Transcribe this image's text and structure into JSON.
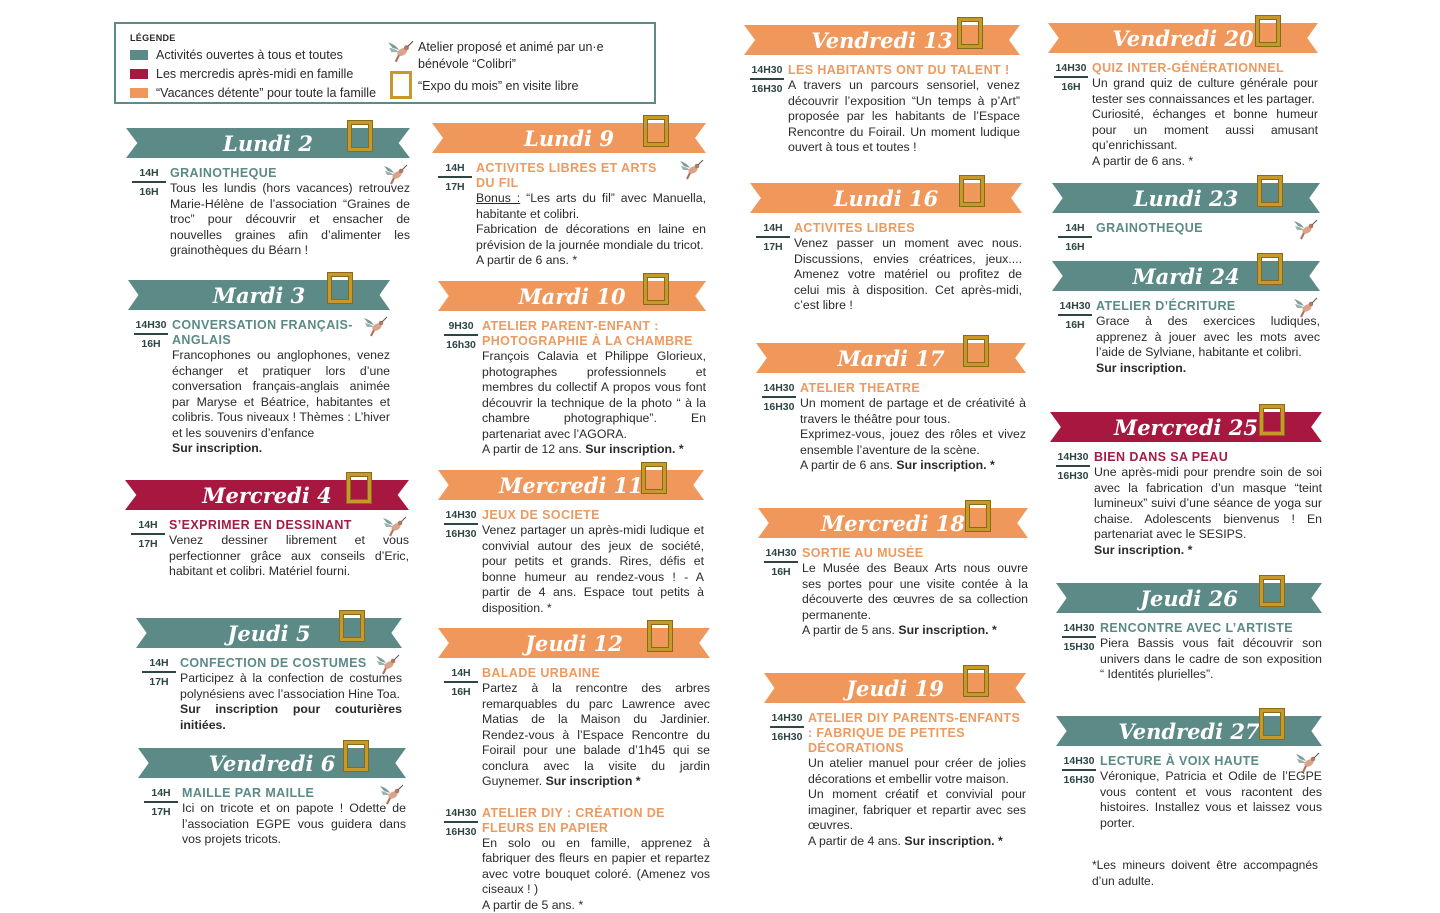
{
  "colors": {
    "teal": "#5b8a87",
    "crimson": "#a8173f",
    "orange": "#f0985c",
    "teal_text": "#5b8a87",
    "crimson_text": "#a31c45",
    "orange_text": "#ec9a60"
  },
  "legend": {
    "title": "LÉGENDE",
    "items": [
      {
        "color": "teal",
        "label": "Activités ouvertes à tous et toutes"
      },
      {
        "color": "crimson",
        "label": "Les mercredis après-midi en famille"
      },
      {
        "color": "orange",
        "label": "“Vacances détente” pour toute la famille"
      }
    ],
    "icons": [
      {
        "icon": "hummingbird-icon",
        "label": "Atelier proposé et animé par un·e bénévole “Colibri”"
      },
      {
        "icon": "picture-frame-icon",
        "label": "“Expo du mois” en visite libre"
      }
    ]
  },
  "days": [
    {
      "label": "Lundi 2",
      "color": "teal",
      "events": [
        {
          "start": "14H",
          "end": "16H",
          "title": "Grainotheque",
          "bird": true,
          "body": [
            [
              {
                "t": "Tous les lundis (hors vacances) retrouvez Marie-Hélène de l’association “Graines de troc” pour découvrir et ensacher de nouvelles graines afin d’alimenter les grainothèques du Béarn !"
              }
            ]
          ]
        }
      ]
    },
    {
      "label": "Mardi 3",
      "color": "teal",
      "events": [
        {
          "start": "14H30",
          "end": "16H",
          "title": "Conversation français-anglais",
          "bird": true,
          "body": [
            [
              {
                "t": "Francophones ou anglophones, venez échanger et pratiquer lors d’une conversation français-anglais animée par Maryse et Béatrice, habitantes et colibris. Tous niveaux ! Thèmes : L’hiver et les souvenirs d’enfance"
              }
            ],
            [
              {
                "t": "Sur inscription.",
                "b": true
              }
            ]
          ]
        }
      ]
    },
    {
      "label": "Mercredi 4",
      "color": "crimson",
      "events": [
        {
          "start": "14H",
          "end": "17H",
          "title": "S’exprimer en dessinant",
          "bird": true,
          "body": [
            [
              {
                "t": "Venez dessiner librement et vous perfectionner grâce aux conseils d’Eric, habitant et colibri. Matériel fourni."
              }
            ]
          ]
        }
      ]
    },
    {
      "label": "Jeudi 5",
      "color": "teal",
      "events": [
        {
          "start": "14H",
          "end": "17H",
          "title": "Confection de costumes",
          "bird": true,
          "body": [
            [
              {
                "t": "Participez à la confection de costumes polynésiens avec l’association Hine Toa."
              }
            ],
            [
              {
                "t": "Sur inscription pour couturières initiées.",
                "b": true
              }
            ]
          ]
        }
      ]
    },
    {
      "label": "Vendredi 6",
      "color": "teal",
      "events": [
        {
          "start": "14H",
          "end": "17H",
          "title": "Maille par maille",
          "bird": true,
          "body": [
            [
              {
                "t": "Ici on tricote et on papote ! Odette de l’association EGPE vous guidera dans vos projets tricots."
              }
            ]
          ]
        }
      ]
    },
    {
      "label": "Lundi 9",
      "color": "orange",
      "events": [
        {
          "start": "14H",
          "end": "17H",
          "title": "Activites libres et arts du fil",
          "bird": true,
          "body": [
            [
              {
                "t": "Bonus :",
                "u": true
              },
              {
                "t": " “Les arts du fil” avec Manuella, habitante et colibri."
              }
            ],
            [
              {
                "t": "Fabrication de décorations en laine en prévision de la journée mondiale du tricot."
              }
            ],
            [
              {
                "t": "A partir de 6 ans. *"
              }
            ]
          ]
        }
      ]
    },
    {
      "label": "Mardi 10",
      "color": "orange",
      "events": [
        {
          "start": "9H30",
          "end": "16h30",
          "title": "Atelier parent-enfant : photographie à la chambre",
          "bird": false,
          "body": [
            [
              {
                "t": "François Calavia et Philippe Glorieux, photographes professionnels et membres du collectif A propos vous font découvrir la technique de la photo “ à la chambre photographique”. En partenariat avec l’AGORA."
              }
            ],
            [
              {
                "t": "A partir de 12 ans. "
              },
              {
                "t": "Sur inscription. *",
                "b": true
              }
            ]
          ]
        }
      ]
    },
    {
      "label": "Mercredi 11",
      "color": "orange",
      "events": [
        {
          "start": "14H30",
          "end": "16H30",
          "title": "Jeux de societe",
          "bird": false,
          "body": [
            [
              {
                "t": "Venez partager un après-midi ludique et convivial autour des jeux de société, pour petits et grands. Rires, défis et bonne humeur au rendez-vous ! - A partir de 4 ans. Espace tout petits à disposition. *"
              }
            ]
          ]
        }
      ]
    },
    {
      "label": "Jeudi 12",
      "color": "orange",
      "events": [
        {
          "start": "14H",
          "end": "16H",
          "title": "Balade urbaine",
          "bird": false,
          "body": [
            [
              {
                "t": "Partez à la rencontre des arbres remarquables du parc Lawrence avec Matias de la Maison du Jardinier. Rendez-vous à l’Espace Rencontre du Foirail pour une balade d’1h45 qui se conclura avec la visite du jardin Guynemer. "
              },
              {
                "t": "Sur inscription *",
                "b": true
              }
            ]
          ]
        },
        {
          "start": "14H30",
          "end": "16H30",
          "title": "Atelier DIY : création de fleurs en papier",
          "bird": false,
          "body": [
            [
              {
                "t": "En solo ou en famille, apprenez à fabriquer des fleurs en papier et repartez avec votre bouquet coloré. (Amenez vos ciseaux ! )"
              }
            ],
            [
              {
                "t": "A partir de 5 ans. *"
              }
            ]
          ]
        }
      ]
    },
    {
      "label": "Vendredi 13",
      "color": "orange",
      "events": [
        {
          "start": "14H30",
          "end": "16H30",
          "title": "Les habitants ont du talent !",
          "bird": false,
          "body": [
            [
              {
                "t": "A travers un parcours sensoriel, venez découvrir l’exposition “Un temps à p’Art” proposée par les habitants de l’Espace Rencontre du Foirail. Un moment ludique ouvert à tous et toutes !"
              }
            ]
          ]
        }
      ]
    },
    {
      "label": "Lundi 16",
      "color": "orange",
      "events": [
        {
          "start": "14H",
          "end": "17H",
          "title": "Activites libres",
          "bird": false,
          "body": [
            [
              {
                "t": "Venez passer un moment avec nous. Discussions, envies créatrices, jeux.... Amenez votre matériel ou profitez de celui mis à disposition. Cet après-midi, c’est libre !"
              }
            ]
          ]
        }
      ]
    },
    {
      "label": "Mardi 17",
      "color": "orange",
      "events": [
        {
          "start": "14H30",
          "end": "16H30",
          "title": "Atelier theatre",
          "bird": false,
          "body": [
            [
              {
                "t": "Un moment de partage et de créativité à travers le théâtre pour tous."
              }
            ],
            [
              {
                "t": "Exprimez-vous, jouez des rôles et vivez ensemble l’aventure de la scène."
              }
            ],
            [
              {
                "t": "A partir de 6 ans. "
              },
              {
                "t": "Sur inscription. *",
                "b": true
              }
            ]
          ]
        }
      ]
    },
    {
      "label": "Mercredi 18",
      "color": "orange",
      "events": [
        {
          "start": "14H30",
          "end": "16H",
          "title": "Sortie au musée",
          "bird": false,
          "body": [
            [
              {
                "t": "Le Musée des Beaux Arts nous ouvre ses portes pour une visite contée à la découverte des œuvres de sa collection permanente."
              }
            ],
            [
              {
                "t": "A partir de 5 ans. "
              },
              {
                "t": "Sur inscription. *",
                "b": true
              }
            ]
          ]
        }
      ]
    },
    {
      "label": "Jeudi 19",
      "color": "orange",
      "events": [
        {
          "start": "14H30",
          "end": "16H30",
          "title": "Atelier DIY parents-enfants : fabrique de petites décorations",
          "bird": false,
          "body": [
            [
              {
                "t": "Un atelier manuel pour créer de jolies décorations et embellir votre maison."
              }
            ],
            [
              {
                "t": "Un moment créatif et convivial pour imaginer, fabriquer et repartir avec ses œuvres."
              }
            ],
            [
              {
                "t": "A partir de 4 ans. "
              },
              {
                "t": "Sur inscription. *",
                "b": true
              }
            ]
          ]
        }
      ]
    },
    {
      "label": "Vendredi 20",
      "color": "orange",
      "events": [
        {
          "start": "14H30",
          "end": "16H",
          "title": "Quiz inter-générationnel",
          "bird": false,
          "body": [
            [
              {
                "t": "Un grand quiz de culture générale pour tester ses connaissances et les partager."
              }
            ],
            [
              {
                "t": "Curiosité, échanges et bonne humeur pour un moment aussi amusant qu’enrichissant."
              }
            ],
            [
              {
                "t": "A partir de 6 ans. *"
              }
            ]
          ]
        }
      ]
    },
    {
      "label": "Lundi 23",
      "color": "teal",
      "events": [
        {
          "start": "14H",
          "end": "16H",
          "title": "Grainotheque",
          "bird": true,
          "body": []
        }
      ]
    },
    {
      "label": "Mardi 24",
      "color": "teal",
      "events": [
        {
          "start": "14H30",
          "end": "16H",
          "title": "Atelier d’écriture",
          "bird": true,
          "body": [
            [
              {
                "t": "Grace à des exercices ludiques, apprenez à jouer avec les mots avec l’aide de Sylviane, habitante et colibri."
              }
            ],
            [
              {
                "t": "Sur inscription.",
                "b": true
              }
            ]
          ]
        }
      ]
    },
    {
      "label": "Mercredi 25",
      "color": "crimson",
      "events": [
        {
          "start": "14H30",
          "end": "16H30",
          "title": "Bien dans sa peau",
          "bird": false,
          "body": [
            [
              {
                "t": "Une après-midi pour prendre soin de soi avec la fabrication d’un masque “teint lumineux” suivi d’une séance de yoga sur chaise.  Adolescents bienvenus ! En partenariat avec le SESIPS."
              }
            ],
            [
              {
                "t": "Sur inscription. *",
                "b": true
              }
            ]
          ]
        }
      ]
    },
    {
      "label": "Jeudi 26",
      "color": "teal",
      "events": [
        {
          "start": "14H30",
          "end": "15H30",
          "title": "Rencontre avec l’artiste",
          "bird": false,
          "body": [
            [
              {
                "t": "Piera Bassis vous fait découvrir son univers dans le cadre de son exposition “ Identités plurielles”."
              }
            ]
          ]
        }
      ]
    },
    {
      "label": "Vendredi 27",
      "color": "teal",
      "events": [
        {
          "start": "14H30",
          "end": "16H30",
          "title": "Lecture à voix haute",
          "bird": true,
          "body": [
            [
              {
                "t": "Véronique, Patricia et Odile de l’EGPE vous content et vous racontent des histoires. Installez vous et laissez vous porter."
              }
            ]
          ]
        }
      ]
    }
  ],
  "footnote": "*Les mineurs doivent être accompagnés d’un adulte."
}
